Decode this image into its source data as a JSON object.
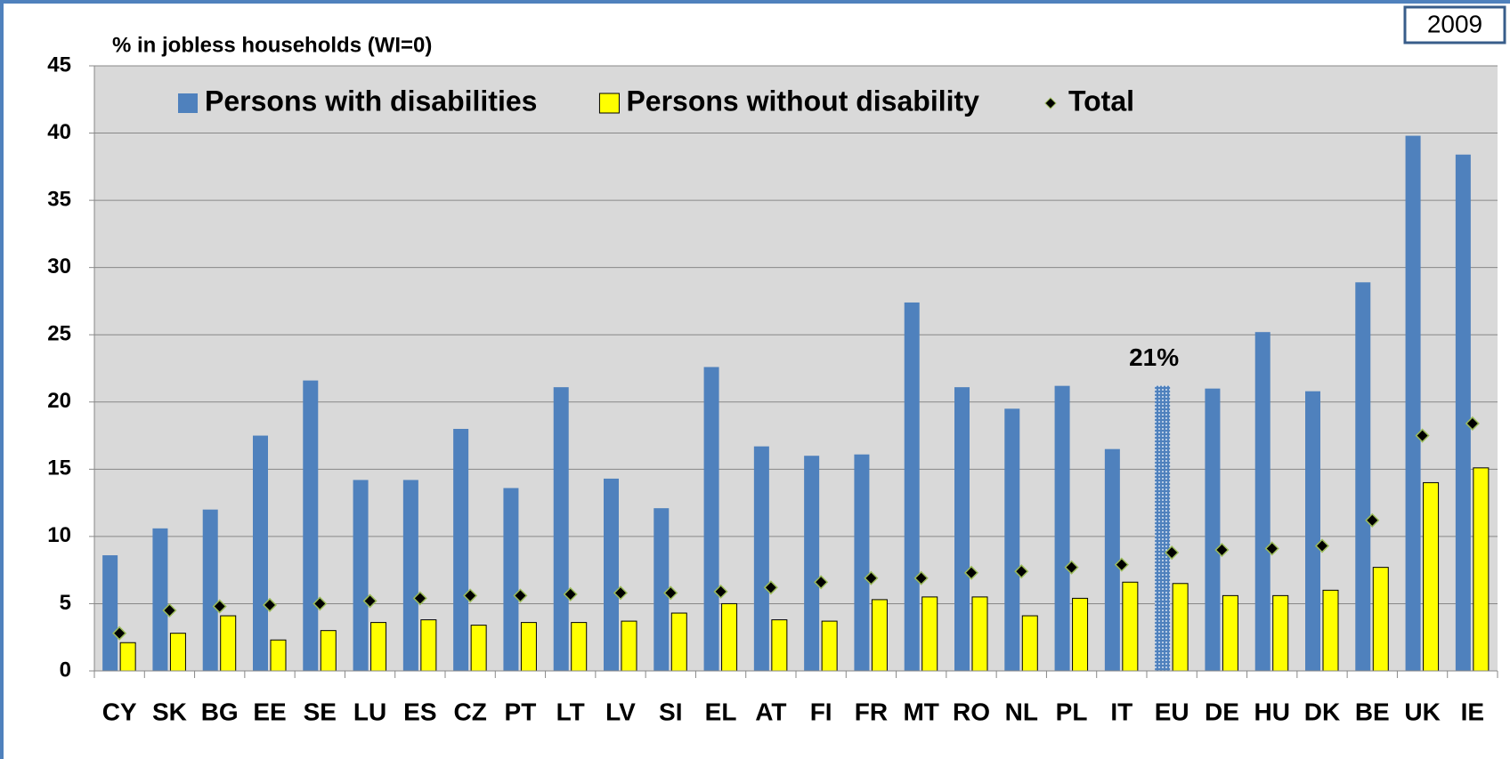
{
  "chart_data": {
    "type": "bar",
    "ylabel": "% in jobless households (WI=0)",
    "year_label": "2009",
    "categories": [
      "CY",
      "SK",
      "BG",
      "EE",
      "SE",
      "LU",
      "ES",
      "CZ",
      "PT",
      "LT",
      "LV",
      "SI",
      "EL",
      "AT",
      "FI",
      "FR",
      "MT",
      "RO",
      "NL",
      "PL",
      "IT",
      "EU",
      "DE",
      "HU",
      "DK",
      "BE",
      "UK",
      "IE"
    ],
    "series": [
      {
        "name": "Persons with disabilities",
        "color": "#4f81bd",
        "kind": "bar",
        "values": [
          8.6,
          10.6,
          12.0,
          17.5,
          21.6,
          14.2,
          14.2,
          18.0,
          13.6,
          21.1,
          14.3,
          12.1,
          22.6,
          16.7,
          16.0,
          16.1,
          27.4,
          21.1,
          19.5,
          21.2,
          16.5,
          21.2,
          21.0,
          25.2,
          20.8,
          28.9,
          39.8,
          38.4
        ]
      },
      {
        "name": "Persons without disability",
        "color": "#ffff00",
        "kind": "bar",
        "values": [
          2.1,
          2.8,
          4.1,
          2.3,
          3.0,
          3.6,
          3.8,
          3.4,
          3.6,
          3.6,
          3.7,
          4.3,
          5.0,
          3.8,
          3.7,
          5.3,
          5.5,
          5.5,
          4.1,
          5.4,
          6.6,
          6.5,
          5.6,
          5.6,
          6.0,
          7.7,
          14.0,
          15.1
        ]
      },
      {
        "name": "Total",
        "color": "#000000",
        "kind": "marker",
        "values": [
          2.8,
          4.5,
          4.8,
          4.9,
          5.0,
          5.2,
          5.4,
          5.6,
          5.6,
          5.7,
          5.8,
          5.8,
          5.9,
          6.2,
          6.6,
          6.9,
          6.9,
          7.3,
          7.4,
          7.7,
          7.9,
          8.8,
          9.0,
          9.1,
          9.3,
          11.2,
          17.5,
          18.4
        ]
      }
    ],
    "annotations": [
      {
        "text": "21%",
        "category": "EU"
      }
    ],
    "ylim": [
      0,
      45
    ],
    "yticks": [
      0,
      5,
      10,
      15,
      20,
      25,
      30,
      35,
      40,
      45
    ],
    "grid": true
  }
}
